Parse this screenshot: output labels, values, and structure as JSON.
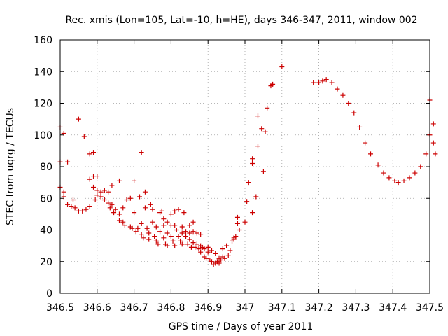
{
  "chart_data": {
    "type": "scatter",
    "title": "Rec. xmis (Lon=105, Lat=-10, h=HE), days 346-347, 2011, window 002",
    "xlabel": "GPS time / Days of year 2011",
    "ylabel": "STEC from uqrg / TECUs",
    "xlim": [
      346.5,
      347.5
    ],
    "ylim": [
      0,
      160
    ],
    "xticks": [
      346.5,
      346.6,
      346.7,
      346.8,
      346.9,
      347,
      347.1,
      347.2,
      347.3,
      347.4,
      347.5
    ],
    "xtick_labels": [
      "346.5",
      "346.6",
      "346.7",
      "346.8",
      "346.9",
      "347",
      "347.1",
      "347.2",
      "347.3",
      "347.4",
      "347.5"
    ],
    "yticks": [
      0,
      20,
      40,
      60,
      80,
      100,
      120,
      140,
      160
    ],
    "ytick_labels": [
      "0",
      "20",
      "40",
      "60",
      "80",
      "100",
      "120",
      "140",
      "160"
    ],
    "grid": true,
    "marker": "+",
    "color": "#cc0000",
    "series": [
      {
        "name": "STEC",
        "points": [
          [
            346.5,
            105
          ],
          [
            346.5,
            83
          ],
          [
            346.5,
            67
          ],
          [
            346.51,
            101
          ],
          [
            346.51,
            64
          ],
          [
            346.51,
            61
          ],
          [
            346.52,
            83
          ],
          [
            346.52,
            56
          ],
          [
            346.53,
            55
          ],
          [
            346.535,
            59
          ],
          [
            346.54,
            54
          ],
          [
            346.55,
            110
          ],
          [
            346.55,
            52
          ],
          [
            346.56,
            52
          ],
          [
            346.565,
            99
          ],
          [
            346.57,
            53
          ],
          [
            346.58,
            88
          ],
          [
            346.58,
            72
          ],
          [
            346.58,
            55
          ],
          [
            346.59,
            89
          ],
          [
            346.59,
            74
          ],
          [
            346.59,
            67
          ],
          [
            346.595,
            59
          ],
          [
            346.6,
            74
          ],
          [
            346.6,
            65
          ],
          [
            346.6,
            62
          ],
          [
            346.61,
            64
          ],
          [
            346.61,
            61
          ],
          [
            346.62,
            65
          ],
          [
            346.62,
            59
          ],
          [
            346.63,
            64
          ],
          [
            346.63,
            57
          ],
          [
            346.635,
            54
          ],
          [
            346.64,
            68
          ],
          [
            346.64,
            56
          ],
          [
            346.645,
            51
          ],
          [
            346.65,
            53
          ],
          [
            346.66,
            71
          ],
          [
            346.66,
            50
          ],
          [
            346.66,
            46
          ],
          [
            346.67,
            54
          ],
          [
            346.67,
            45
          ],
          [
            346.675,
            43
          ],
          [
            346.68,
            59
          ],
          [
            346.69,
            42
          ],
          [
            346.69,
            60
          ],
          [
            346.695,
            41
          ],
          [
            346.7,
            71
          ],
          [
            346.7,
            51
          ],
          [
            346.705,
            39
          ],
          [
            346.71,
            41
          ],
          [
            346.715,
            61
          ],
          [
            346.72,
            89
          ],
          [
            346.72,
            44
          ],
          [
            346.72,
            37
          ],
          [
            346.725,
            35
          ],
          [
            346.73,
            64
          ],
          [
            346.73,
            54
          ],
          [
            346.735,
            41
          ],
          [
            346.74,
            38
          ],
          [
            346.74,
            34
          ],
          [
            346.745,
            56
          ],
          [
            346.75,
            53
          ],
          [
            346.75,
            45
          ],
          [
            346.755,
            36
          ],
          [
            346.76,
            42
          ],
          [
            346.76,
            33
          ],
          [
            346.765,
            31
          ],
          [
            346.77,
            51
          ],
          [
            346.77,
            39
          ],
          [
            346.775,
            52
          ],
          [
            346.78,
            47
          ],
          [
            346.78,
            43
          ],
          [
            346.78,
            35
          ],
          [
            346.785,
            31
          ],
          [
            346.79,
            45
          ],
          [
            346.79,
            38
          ],
          [
            346.79,
            30
          ],
          [
            346.8,
            50
          ],
          [
            346.8,
            43
          ],
          [
            346.8,
            36
          ],
          [
            346.805,
            33
          ],
          [
            346.81,
            52
          ],
          [
            346.81,
            43
          ],
          [
            346.81,
            30
          ],
          [
            346.815,
            40
          ],
          [
            346.82,
            53
          ],
          [
            346.82,
            36
          ],
          [
            346.825,
            33
          ],
          [
            346.83,
            42
          ],
          [
            346.83,
            38
          ],
          [
            346.83,
            31
          ],
          [
            346.835,
            51
          ],
          [
            346.84,
            39
          ],
          [
            346.84,
            36
          ],
          [
            346.845,
            31
          ],
          [
            346.85,
            43
          ],
          [
            346.85,
            38
          ],
          [
            346.85,
            34
          ],
          [
            346.855,
            29
          ],
          [
            346.86,
            45
          ],
          [
            346.86,
            39
          ],
          [
            346.86,
            32
          ],
          [
            346.865,
            29
          ],
          [
            346.87,
            38
          ],
          [
            346.87,
            31
          ],
          [
            346.875,
            28
          ],
          [
            346.88,
            37
          ],
          [
            346.88,
            30
          ],
          [
            346.88,
            26
          ],
          [
            346.885,
            29
          ],
          [
            346.89,
            28
          ],
          [
            346.89,
            23
          ],
          [
            346.895,
            22
          ],
          [
            346.9,
            29
          ],
          [
            346.9,
            26
          ],
          [
            346.905,
            21
          ],
          [
            346.91,
            27
          ],
          [
            346.91,
            20
          ],
          [
            346.915,
            18
          ],
          [
            346.92,
            25
          ],
          [
            346.92,
            19
          ],
          [
            346.925,
            20
          ],
          [
            346.93,
            22
          ],
          [
            346.93,
            19
          ],
          [
            346.935,
            21
          ],
          [
            346.94,
            28
          ],
          [
            346.94,
            23
          ],
          [
            346.945,
            22
          ],
          [
            346.95,
            30
          ],
          [
            346.955,
            24
          ],
          [
            346.96,
            27
          ],
          [
            346.965,
            33
          ],
          [
            346.97,
            35
          ],
          [
            346.97,
            34
          ],
          [
            346.975,
            36
          ],
          [
            346.98,
            48
          ],
          [
            346.98,
            44
          ],
          [
            346.985,
            40
          ],
          [
            347.0,
            45
          ],
          [
            347.005,
            58
          ],
          [
            347.01,
            70
          ],
          [
            347.02,
            51
          ],
          [
            347.02,
            82
          ],
          [
            347.02,
            85
          ],
          [
            347.03,
            61
          ],
          [
            347.035,
            93
          ],
          [
            347.035,
            112
          ],
          [
            347.045,
            104
          ],
          [
            347.05,
            77
          ],
          [
            347.055,
            102
          ],
          [
            347.06,
            117
          ],
          [
            347.07,
            131
          ],
          [
            347.075,
            132
          ],
          [
            347.1,
            143
          ],
          [
            347.185,
            133
          ],
          [
            347.2,
            133
          ],
          [
            347.21,
            134
          ],
          [
            347.22,
            135
          ],
          [
            347.235,
            133
          ],
          [
            347.25,
            129
          ],
          [
            347.265,
            125
          ],
          [
            347.28,
            120
          ],
          [
            347.295,
            114
          ],
          [
            347.31,
            105
          ],
          [
            347.325,
            95
          ],
          [
            347.34,
            88
          ],
          [
            347.36,
            81
          ],
          [
            347.375,
            76
          ],
          [
            347.39,
            73
          ],
          [
            347.405,
            71
          ],
          [
            347.415,
            70
          ],
          [
            347.43,
            71
          ],
          [
            347.445,
            73
          ],
          [
            347.46,
            76
          ],
          [
            347.475,
            80
          ],
          [
            347.49,
            88
          ],
          [
            347.5,
            100
          ],
          [
            347.5,
            122
          ],
          [
            347.51,
            107
          ],
          [
            347.51,
            95
          ],
          [
            347.515,
            88
          ]
        ]
      }
    ]
  }
}
